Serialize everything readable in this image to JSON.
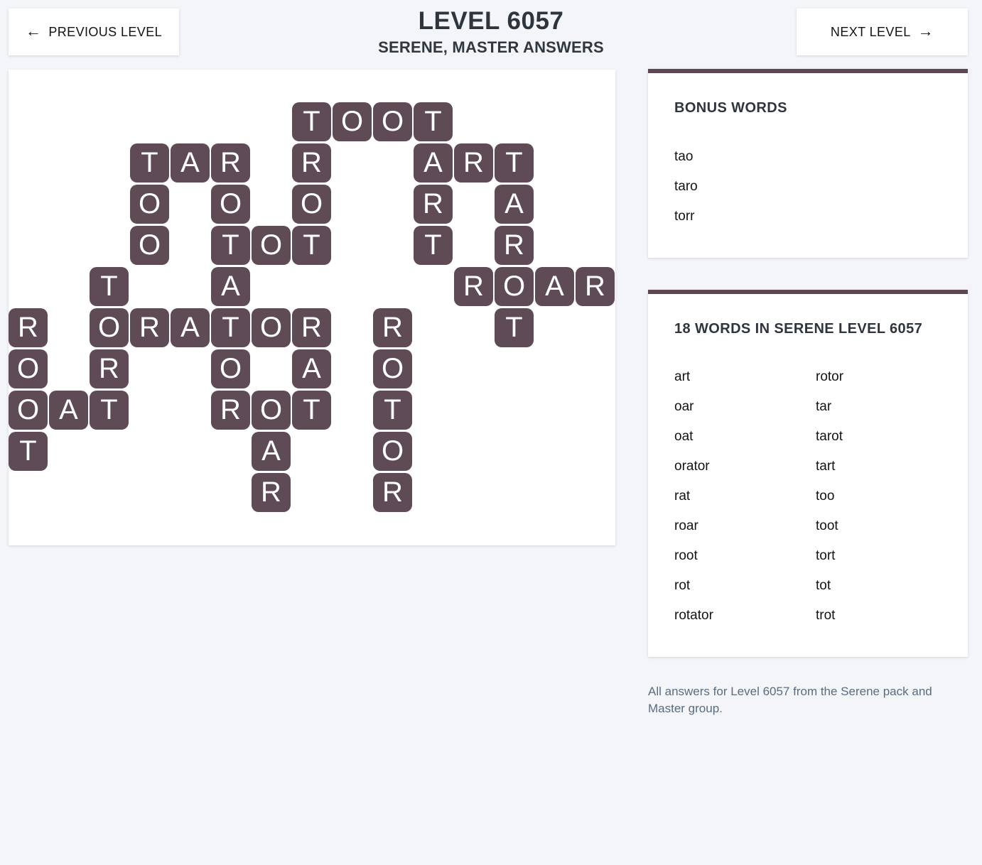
{
  "header": {
    "prev_label": "PREVIOUS LEVEL",
    "prev_arrow": "←",
    "next_label": "NEXT LEVEL",
    "next_arrow": "→",
    "title": "LEVEL 6057",
    "subtitle": "SERENE, MASTER ANSWERS"
  },
  "board": {
    "rows": 10,
    "cols": 15,
    "tiles": [
      {
        "r": 0,
        "c": 7,
        "letter": "T"
      },
      {
        "r": 0,
        "c": 8,
        "letter": "O"
      },
      {
        "r": 0,
        "c": 9,
        "letter": "O"
      },
      {
        "r": 0,
        "c": 10,
        "letter": "T"
      },
      {
        "r": 1,
        "c": 3,
        "letter": "T"
      },
      {
        "r": 1,
        "c": 4,
        "letter": "A"
      },
      {
        "r": 1,
        "c": 5,
        "letter": "R"
      },
      {
        "r": 1,
        "c": 7,
        "letter": "R"
      },
      {
        "r": 1,
        "c": 10,
        "letter": "A"
      },
      {
        "r": 1,
        "c": 11,
        "letter": "R"
      },
      {
        "r": 1,
        "c": 12,
        "letter": "T"
      },
      {
        "r": 2,
        "c": 3,
        "letter": "O"
      },
      {
        "r": 2,
        "c": 5,
        "letter": "O"
      },
      {
        "r": 2,
        "c": 7,
        "letter": "O"
      },
      {
        "r": 2,
        "c": 10,
        "letter": "R"
      },
      {
        "r": 2,
        "c": 12,
        "letter": "A"
      },
      {
        "r": 3,
        "c": 3,
        "letter": "O"
      },
      {
        "r": 3,
        "c": 5,
        "letter": "T"
      },
      {
        "r": 3,
        "c": 6,
        "letter": "O"
      },
      {
        "r": 3,
        "c": 7,
        "letter": "T"
      },
      {
        "r": 3,
        "c": 10,
        "letter": "T"
      },
      {
        "r": 3,
        "c": 12,
        "letter": "R"
      },
      {
        "r": 4,
        "c": 2,
        "letter": "T"
      },
      {
        "r": 4,
        "c": 5,
        "letter": "A"
      },
      {
        "r": 4,
        "c": 11,
        "letter": "R"
      },
      {
        "r": 4,
        "c": 12,
        "letter": "O"
      },
      {
        "r": 4,
        "c": 13,
        "letter": "A"
      },
      {
        "r": 4,
        "c": 14,
        "letter": "R"
      },
      {
        "r": 5,
        "c": 0,
        "letter": "R"
      },
      {
        "r": 5,
        "c": 2,
        "letter": "O"
      },
      {
        "r": 5,
        "c": 3,
        "letter": "R"
      },
      {
        "r": 5,
        "c": 4,
        "letter": "A"
      },
      {
        "r": 5,
        "c": 5,
        "letter": "T"
      },
      {
        "r": 5,
        "c": 6,
        "letter": "O"
      },
      {
        "r": 5,
        "c": 7,
        "letter": "R"
      },
      {
        "r": 5,
        "c": 9,
        "letter": "R"
      },
      {
        "r": 5,
        "c": 12,
        "letter": "T"
      },
      {
        "r": 6,
        "c": 0,
        "letter": "O"
      },
      {
        "r": 6,
        "c": 2,
        "letter": "R"
      },
      {
        "r": 6,
        "c": 5,
        "letter": "O"
      },
      {
        "r": 6,
        "c": 7,
        "letter": "A"
      },
      {
        "r": 6,
        "c": 9,
        "letter": "O"
      },
      {
        "r": 7,
        "c": 0,
        "letter": "O"
      },
      {
        "r": 7,
        "c": 1,
        "letter": "A"
      },
      {
        "r": 7,
        "c": 2,
        "letter": "T"
      },
      {
        "r": 7,
        "c": 5,
        "letter": "R"
      },
      {
        "r": 7,
        "c": 6,
        "letter": "O"
      },
      {
        "r": 7,
        "c": 7,
        "letter": "T"
      },
      {
        "r": 7,
        "c": 9,
        "letter": "T"
      },
      {
        "r": 8,
        "c": 0,
        "letter": "T"
      },
      {
        "r": 8,
        "c": 6,
        "letter": "A"
      },
      {
        "r": 8,
        "c": 9,
        "letter": "O"
      },
      {
        "r": 9,
        "c": 6,
        "letter": "R"
      },
      {
        "r": 9,
        "c": 9,
        "letter": "R"
      }
    ]
  },
  "bonus_panel": {
    "heading": "BONUS WORDS",
    "words": [
      "tao",
      "taro",
      "torr"
    ]
  },
  "words_panel": {
    "heading": "18 WORDS IN SERENE LEVEL 6057",
    "columns": [
      [
        "art",
        "oar",
        "oat",
        "orator",
        "rat",
        "roar",
        "root",
        "rot",
        "rotator"
      ],
      [
        "rotor",
        "tar",
        "tarot",
        "tart",
        "too",
        "toot",
        "tort",
        "tot",
        "trot"
      ]
    ]
  },
  "footer": {
    "text": "All answers for Level 6057 from the Serene pack and Master group."
  },
  "colors": {
    "tile": "#5e4b56",
    "panel_accent": "#5c4753",
    "page_bg": "#f3f5f9",
    "heading_text": "#2e353c",
    "footer_text": "#5b6c7e"
  }
}
